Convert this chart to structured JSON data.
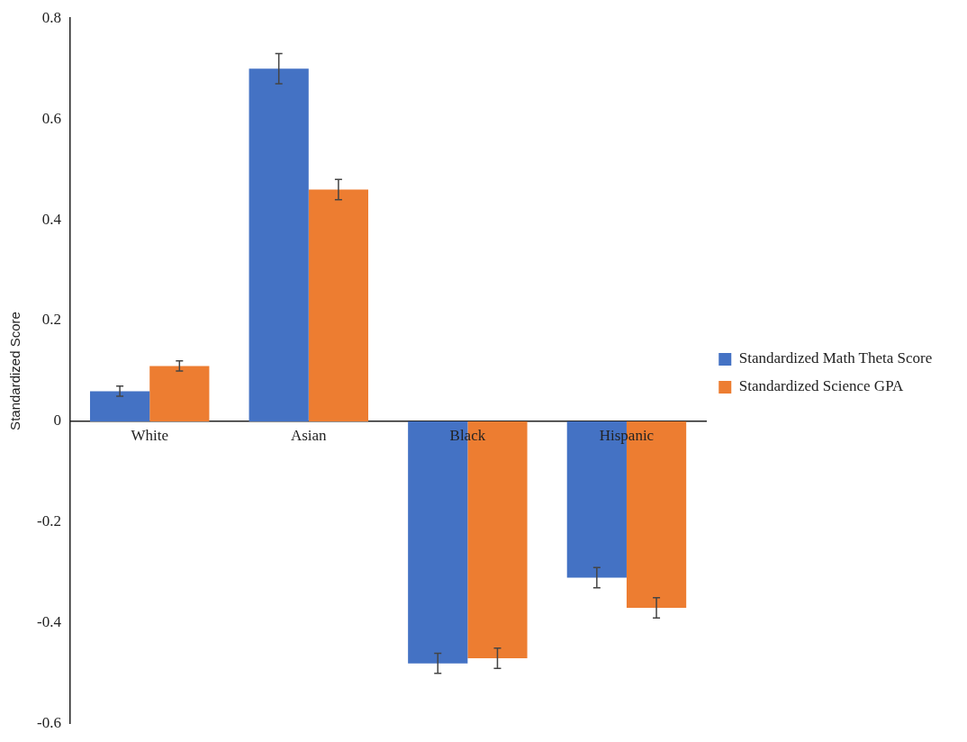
{
  "chart_data": {
    "type": "bar",
    "ylabel": "Standardized Score",
    "categories": [
      "White",
      "Asian",
      "Black",
      "Hispanic"
    ],
    "series": [
      {
        "name": "Standardized Math Theta Score",
        "color": "#4472c4",
        "values": [
          0.06,
          0.7,
          -0.48,
          -0.31
        ],
        "errors": [
          0.01,
          0.03,
          0.02,
          0.02
        ]
      },
      {
        "name": "Standardized Science GPA",
        "color": "#ed7d31",
        "values": [
          0.11,
          0.46,
          -0.47,
          -0.37
        ],
        "errors": [
          0.01,
          0.02,
          0.02,
          0.02
        ]
      }
    ],
    "ylim": [
      -0.6,
      0.8
    ],
    "yticks": [
      -0.6,
      -0.4,
      -0.2,
      0,
      0.2,
      0.4,
      0.6,
      0.8
    ],
    "grid": false,
    "legend": "right"
  }
}
